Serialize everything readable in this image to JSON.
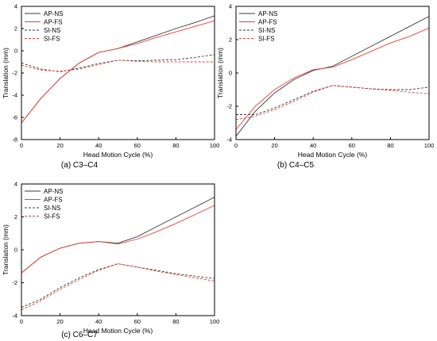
{
  "chart_data": [
    {
      "type": "line",
      "caption": "(a) C3–C4",
      "xlabel": "Head Motion Cycle (%)",
      "ylabel": "Translation (mm)",
      "xlim": [
        0,
        100
      ],
      "ylim": [
        -8,
        4
      ],
      "xticks": [
        0,
        20,
        40,
        60,
        80,
        100
      ],
      "yticks": [
        -8,
        -6,
        -4,
        -2,
        0,
        2,
        4
      ],
      "grid": false,
      "legend_position": "top-left",
      "x": [
        0,
        10,
        20,
        30,
        40,
        50,
        60,
        70,
        80,
        90,
        100
      ],
      "series": [
        {
          "name": "AP-NS",
          "color": "#3a3a3a",
          "dashed": false,
          "values": [
            -6.5,
            -4.3,
            -2.5,
            -1.1,
            -0.15,
            0.2,
            0.8,
            1.4,
            2.0,
            2.55,
            3.15
          ]
        },
        {
          "name": "AP-FS",
          "color": "#e8413a",
          "dashed": false,
          "values": [
            -6.5,
            -4.3,
            -2.5,
            -1.1,
            -0.15,
            0.2,
            0.65,
            1.2,
            1.7,
            2.2,
            2.7
          ]
        },
        {
          "name": "SI-NS",
          "color": "#3a3a3a",
          "dashed": true,
          "values": [
            -1.1,
            -1.65,
            -1.9,
            -1.55,
            -1.15,
            -0.85,
            -0.9,
            -0.85,
            -0.8,
            -0.6,
            -0.35
          ]
        },
        {
          "name": "SI-FS",
          "color": "#e8413a",
          "dashed": true,
          "values": [
            -1.3,
            -1.75,
            -1.85,
            -1.65,
            -1.25,
            -0.85,
            -0.95,
            -1.0,
            -1.0,
            -1.0,
            -1.0
          ]
        }
      ]
    },
    {
      "type": "line",
      "caption": "(b) C4–C5",
      "xlabel": "Head Motion Cycle (%)",
      "ylabel": "Translation (mm)",
      "xlim": [
        0,
        100
      ],
      "ylim": [
        -4,
        4
      ],
      "xticks": [
        0,
        20,
        40,
        60,
        80,
        100
      ],
      "yticks": [
        -4,
        -2,
        0,
        2,
        4
      ],
      "grid": false,
      "legend_position": "top-left",
      "x": [
        0,
        10,
        20,
        30,
        40,
        50,
        60,
        70,
        80,
        90,
        100
      ],
      "series": [
        {
          "name": "AP-NS",
          "color": "#3a3a3a",
          "dashed": false,
          "values": [
            -3.8,
            -2.3,
            -1.2,
            -0.4,
            0.15,
            0.4,
            1.0,
            1.6,
            2.2,
            2.8,
            3.4
          ]
        },
        {
          "name": "AP-FS",
          "color": "#e8413a",
          "dashed": false,
          "values": [
            -3.4,
            -2.0,
            -1.0,
            -0.3,
            0.2,
            0.35,
            0.8,
            1.3,
            1.8,
            2.2,
            2.7
          ]
        },
        {
          "name": "SI-NS",
          "color": "#3a3a3a",
          "dashed": true,
          "values": [
            -2.5,
            -2.5,
            -2.1,
            -1.6,
            -1.1,
            -0.75,
            -0.85,
            -0.95,
            -1.0,
            -1.0,
            -0.85
          ]
        },
        {
          "name": "SI-FS",
          "color": "#e8413a",
          "dashed": true,
          "values": [
            -2.8,
            -2.6,
            -2.2,
            -1.7,
            -1.15,
            -0.75,
            -0.85,
            -0.95,
            -1.05,
            -1.15,
            -1.25
          ]
        }
      ]
    },
    {
      "type": "line",
      "caption": "(c) C6–C7",
      "xlabel": "Head Motion Cycle (%)",
      "ylabel": "Translation (mm)",
      "xlim": [
        0,
        100
      ],
      "ylim": [
        -4,
        4
      ],
      "xticks": [
        0,
        20,
        40,
        60,
        80,
        100
      ],
      "yticks": [
        -4,
        -2,
        0,
        2,
        4
      ],
      "grid": false,
      "legend_position": "top-left",
      "x": [
        0,
        10,
        20,
        30,
        40,
        50,
        60,
        70,
        80,
        90,
        100
      ],
      "series": [
        {
          "name": "AP-NS",
          "color": "#3a3a3a",
          "dashed": false,
          "values": [
            -1.4,
            -0.45,
            0.1,
            0.4,
            0.5,
            0.4,
            0.8,
            1.4,
            2.0,
            2.6,
            3.2
          ]
        },
        {
          "name": "AP-FS",
          "color": "#e8413a",
          "dashed": false,
          "values": [
            -1.4,
            -0.45,
            0.1,
            0.4,
            0.5,
            0.35,
            0.65,
            1.1,
            1.6,
            2.15,
            2.7
          ]
        },
        {
          "name": "SI-NS",
          "color": "#3a3a3a",
          "dashed": true,
          "values": [
            -3.5,
            -3.0,
            -2.3,
            -1.7,
            -1.2,
            -0.85,
            -1.05,
            -1.25,
            -1.45,
            -1.6,
            -1.75
          ]
        },
        {
          "name": "SI-FS",
          "color": "#e8413a",
          "dashed": true,
          "values": [
            -3.65,
            -3.1,
            -2.4,
            -1.8,
            -1.25,
            -0.85,
            -1.05,
            -1.3,
            -1.5,
            -1.7,
            -1.9
          ]
        }
      ]
    }
  ]
}
